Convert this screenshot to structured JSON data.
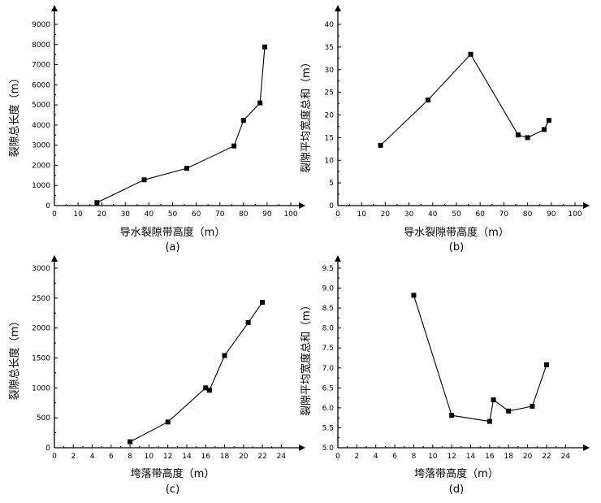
{
  "chart_data": [
    {
      "id": "a",
      "type": "line",
      "panel_label": "(a)",
      "xlabel": "导水裂隙带高度（m）",
      "ylabel": "裂隙总长度（m）",
      "xlim": [
        0,
        100
      ],
      "ylim": [
        0,
        9000
      ],
      "xticks": [
        0,
        10,
        20,
        30,
        40,
        50,
        60,
        70,
        80,
        90,
        100
      ],
      "yticks": [
        0,
        1000,
        2000,
        3000,
        4000,
        5000,
        6000,
        7000,
        8000,
        9000
      ],
      "x": [
        18,
        38,
        56,
        76,
        80,
        87,
        89
      ],
      "y": [
        150,
        1280,
        1850,
        2960,
        4230,
        5100,
        7880
      ]
    },
    {
      "id": "b",
      "type": "line",
      "panel_label": "(b)",
      "xlabel": "导水裂隙带高度（m）",
      "ylabel": "裂隙平均宽度总和（m）",
      "xlim": [
        0,
        100
      ],
      "ylim": [
        0,
        40
      ],
      "xticks": [
        0,
        10,
        20,
        30,
        40,
        50,
        60,
        70,
        80,
        90,
        100
      ],
      "yticks": [
        0,
        5,
        10,
        15,
        20,
        25,
        30,
        35,
        40
      ],
      "x": [
        18,
        38,
        56,
        76,
        80,
        87,
        89
      ],
      "y": [
        13.3,
        23.3,
        33.4,
        15.6,
        15.0,
        16.8,
        18.8
      ]
    },
    {
      "id": "c",
      "type": "line",
      "panel_label": "(c)",
      "xlabel": "垮落带高度（m）",
      "ylabel": "裂隙总长度（m）",
      "xlim": [
        0,
        25
      ],
      "ylim": [
        0,
        3000
      ],
      "xticks": [
        0,
        2,
        4,
        6,
        8,
        10,
        12,
        14,
        16,
        18,
        20,
        22,
        24
      ],
      "yticks": [
        0,
        500,
        1000,
        1500,
        2000,
        2500,
        3000
      ],
      "x": [
        8,
        12,
        16,
        16.4,
        18,
        20.5,
        22
      ],
      "y": [
        100,
        430,
        1000,
        960,
        1540,
        2090,
        2430
      ]
    },
    {
      "id": "d",
      "type": "line",
      "panel_label": "(d)",
      "xlabel": "垮落带高度（m）",
      "ylabel": "裂隙平均宽度总和（m）",
      "xlim": [
        0,
        25
      ],
      "ylim": [
        5.0,
        9.5
      ],
      "xticks": [
        0,
        2,
        4,
        6,
        8,
        10,
        12,
        14,
        16,
        18,
        20,
        22,
        24
      ],
      "yticks": [
        5.0,
        5.5,
        6.0,
        6.5,
        7.0,
        7.5,
        8.0,
        8.5,
        9.0,
        9.5
      ],
      "x": [
        8,
        12,
        16,
        16.4,
        18,
        20.5,
        22
      ],
      "y": [
        8.82,
        5.81,
        5.66,
        6.2,
        5.92,
        6.04,
        7.08
      ]
    }
  ]
}
